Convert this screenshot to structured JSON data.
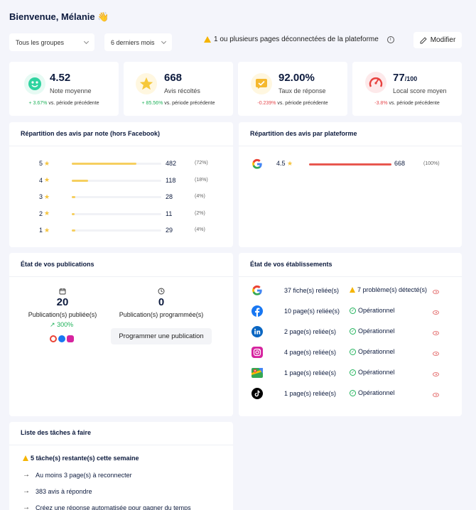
{
  "header": {
    "greeting": "Bienvenue, Mélanie",
    "wave_icon": "waving-hand-icon",
    "filter_groups": "Tous les groupes",
    "filter_period": "6 derniers mois",
    "warning": "1 ou plusieurs pages déconnectées de la plateforme",
    "modify_label": "Modifier"
  },
  "kpis": [
    {
      "icon": "smiley-icon",
      "value": "4.52",
      "suffix": "",
      "label": "Note moyenne",
      "delta": "+ 3.67%",
      "delta_suffix": "vs. période précédente"
    },
    {
      "icon": "star-icon",
      "value": "668",
      "suffix": "",
      "label": "Avis récoltés",
      "delta": "+ 85.56%",
      "delta_suffix": "vs. période précédente"
    },
    {
      "icon": "message-check-icon",
      "value": "92.00%",
      "suffix": "",
      "label": "Taux de réponse",
      "delta": "-0.239%",
      "delta_suffix": "vs. période précédente"
    },
    {
      "icon": "gauge-icon",
      "value": "77",
      "suffix": "/100",
      "label": "Local score moyen",
      "delta": "-3.8%",
      "delta_suffix": "vs. période précédente"
    }
  ],
  "ratings": {
    "title": "Répartition des avis par note (hors Facebook)",
    "rows": [
      {
        "note": "5",
        "count": "482",
        "pct": "(72%)",
        "fraction": 0.72
      },
      {
        "note": "4",
        "count": "118",
        "pct": "(18%)",
        "fraction": 0.18
      },
      {
        "note": "3",
        "count": "28",
        "pct": "(4%)",
        "fraction": 0.04
      },
      {
        "note": "2",
        "count": "11",
        "pct": "(2%)",
        "fraction": 0.02
      },
      {
        "note": "1",
        "count": "29",
        "pct": "(4%)",
        "fraction": 0.04
      }
    ]
  },
  "platforms": {
    "title": "Répartition des avis par plateforme",
    "rows": [
      {
        "icon": "google-icon",
        "rating": "4.5",
        "count": "668",
        "pct": "(100%)",
        "fraction": 1.0
      }
    ]
  },
  "publications": {
    "title": "État de vos publications",
    "published_count": "20",
    "published_label": "Publication(s) publiée(s)",
    "published_trend": "300%",
    "scheduled_count": "0",
    "scheduled_label": "Publication(s) programmée(s)",
    "schedule_button": "Programmer une publication"
  },
  "establishments": {
    "title": "État de vos établissements",
    "rows": [
      {
        "icon": "google-icon",
        "linked": "37 fiche(s) reliée(s)",
        "status": "7 problème(s) détecté(s)",
        "status_type": "warning"
      },
      {
        "icon": "facebook-icon",
        "linked": "10 page(s) reliée(s)",
        "status": "Opérationnel",
        "status_type": "ok"
      },
      {
        "icon": "linkedin-icon",
        "linked": "2 page(s) reliée(s)",
        "status": "Opérationnel",
        "status_type": "ok"
      },
      {
        "icon": "instagram-icon",
        "linked": "4 page(s) reliée(s)",
        "status": "Opérationnel",
        "status_type": "ok"
      },
      {
        "icon": "maps-icon",
        "linked": "1 page(s) reliée(s)",
        "status": "Opérationnel",
        "status_type": "ok"
      },
      {
        "icon": "tiktok-icon",
        "linked": "1 page(s) reliée(s)",
        "status": "Opérationnel",
        "status_type": "ok"
      }
    ]
  },
  "tasks": {
    "title": "Liste des tâches à faire",
    "summary": "5 tâche(s) restante(s) cette semaine",
    "items": [
      "Au moins 3 page(s) à reconnecter",
      "383 avis à répondre",
      "Créez une réponse automatisée pour gagner du temps"
    ]
  },
  "colors": {
    "bar_rating": "#f6cf5f",
    "bar_platform": "#e8574f",
    "positive": "#1fb25a",
    "negative": "#e5484d"
  }
}
